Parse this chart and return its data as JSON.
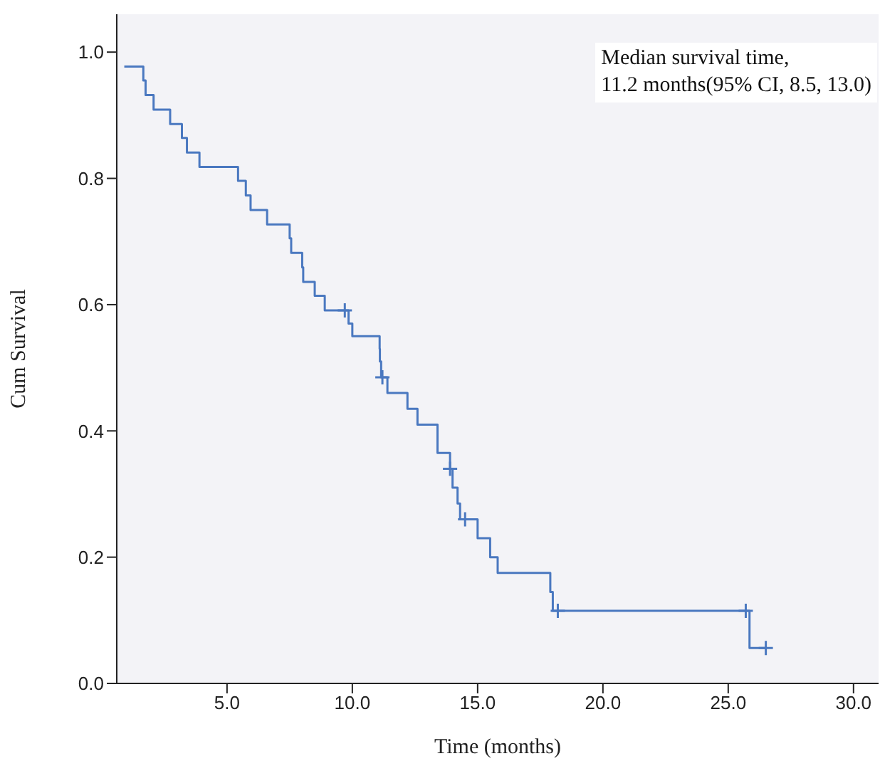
{
  "chart_data": {
    "type": "step",
    "xlabel": "Time (months)",
    "ylabel": "Cum Survival",
    "annotations": [
      "Median survival time,\n11.2 months(95% CI, 8.5, 13.0)"
    ],
    "xlim": [
      0.6,
      31
    ],
    "ylim": [
      0,
      1.06
    ],
    "xticks": [
      {
        "value": 5,
        "label": "5.0"
      },
      {
        "value": 10,
        "label": "10.0"
      },
      {
        "value": 15,
        "label": "15.0"
      },
      {
        "value": 20,
        "label": "20.0"
      },
      {
        "value": 25,
        "label": "25.0"
      },
      {
        "value": 30,
        "label": "30.0"
      }
    ],
    "yticks": [
      {
        "value": 0,
        "label": "0.0"
      },
      {
        "value": 0.2,
        "label": "0.2"
      },
      {
        "value": 0.4,
        "label": "0.4"
      },
      {
        "value": 0.6,
        "label": "0.6"
      },
      {
        "value": 0.8,
        "label": "0.8"
      },
      {
        "value": 1,
        "label": "1.0"
      }
    ],
    "series": [
      {
        "color": "#4a78c0",
        "x": [
          0.9,
          1.66,
          1.75,
          2.07,
          2.73,
          3.2,
          3.4,
          3.9,
          5.44,
          5.75,
          5.94,
          6.6,
          7.5,
          7.56,
          8.0,
          8.04,
          8.5,
          8.9,
          9.85,
          10.0,
          11.09,
          11.1,
          11.15,
          11.4,
          12.2,
          12.6,
          13.4,
          13.9,
          14.0,
          14.2,
          14.3,
          15.0,
          15.5,
          15.8,
          17.9,
          18.0,
          25.85,
          26.5
        ],
        "values": [
          0.977,
          0.955,
          0.932,
          0.909,
          0.886,
          0.864,
          0.841,
          0.818,
          0.796,
          0.773,
          0.75,
          0.727,
          0.705,
          0.682,
          0.659,
          0.636,
          0.614,
          0.591,
          0.57,
          0.55,
          0.53,
          0.51,
          0.485,
          0.46,
          0.435,
          0.41,
          0.365,
          0.34,
          0.31,
          0.285,
          0.26,
          0.23,
          0.2,
          0.175,
          0.145,
          0.115,
          0.056,
          0.056
        ]
      },
      {
        "type": "scatter",
        "color": "#4a78c0",
        "marker": "cross",
        "x": [
          9.7,
          11.2,
          13.9,
          14.5,
          18.2,
          25.7,
          26.5
        ],
        "values": [
          0.591,
          0.485,
          0.34,
          0.26,
          0.115,
          0.115,
          0.056
        ]
      }
    ]
  }
}
